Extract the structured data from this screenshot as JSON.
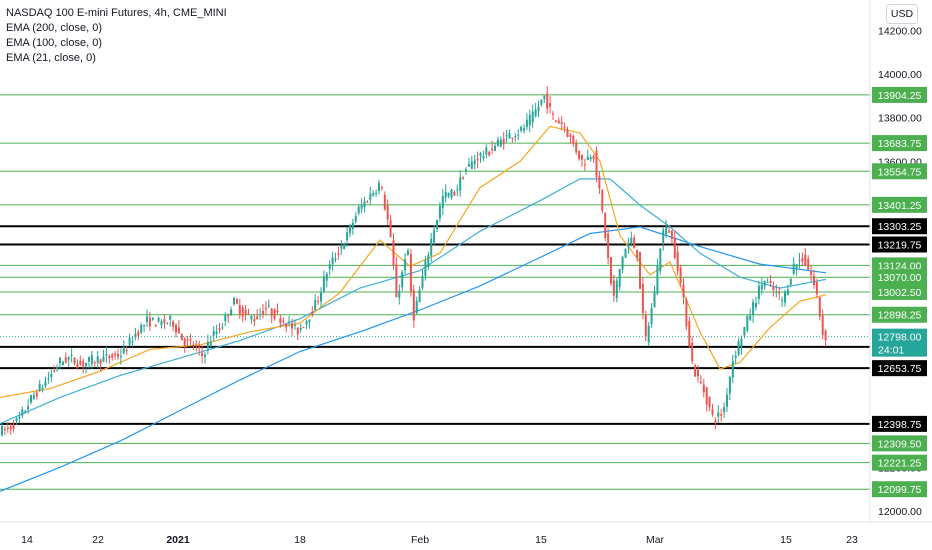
{
  "header": {
    "title": "NASDAQ 100 E-mini Futures, 4h, CME_MINI",
    "indicators": [
      "EMA (200, close, 0)",
      "EMA (100, close, 0)",
      "EMA (21, close, 0)"
    ],
    "currency_button": "USD"
  },
  "colors": {
    "up": "#26a69a",
    "down": "#ef5350",
    "green_level": "#4caf50",
    "black_level": "#000000",
    "ema21": "#f5a623",
    "ema100": "#3fb1d6",
    "ema200": "#2196f3",
    "last_price": "#26a69a"
  },
  "chart_data": {
    "type": "candlestick",
    "title": "NASDAQ 100 E-mini Futures, 4h, CME_MINI",
    "timeframe": "4h",
    "ylim": [
      11930,
      14330
    ],
    "y_ticks": [
      12000.0,
      12200.0,
      13600.0,
      13800.0,
      14000.0,
      14200.0
    ],
    "x_ticks": [
      "14",
      "22",
      "2021",
      "18",
      "Feb",
      "15",
      "Mar",
      "15",
      "23"
    ],
    "x_tick_bold": [
      "2021"
    ],
    "horizontal_levels": [
      {
        "price": 13904.25,
        "label": "13904.25",
        "color": "green"
      },
      {
        "price": 13683.75,
        "label": "13683.75",
        "color": "green"
      },
      {
        "price": 13554.75,
        "label": "13554.75",
        "color": "green"
      },
      {
        "price": 13401.25,
        "label": "13401.25",
        "color": "green"
      },
      {
        "price": 13303.25,
        "label": "13303.25",
        "color": "black"
      },
      {
        "price": 13219.75,
        "label": "13219.75",
        "color": "black"
      },
      {
        "price": 13124.0,
        "label": "13124.00",
        "color": "green"
      },
      {
        "price": 13070.0,
        "label": "13070.00",
        "color": "green"
      },
      {
        "price": 13002.5,
        "label": "13002.50",
        "color": "green"
      },
      {
        "price": 12898.25,
        "label": "12898.25",
        "color": "green"
      },
      {
        "price": 12751.0,
        "label": "12751.00",
        "color": "black"
      },
      {
        "price": 12653.75,
        "label": "12653.75",
        "color": "black"
      },
      {
        "price": 12398.75,
        "label": "12398.75",
        "color": "black"
      },
      {
        "price": 12309.5,
        "label": "12309.50",
        "color": "green"
      },
      {
        "price": 12221.25,
        "label": "12221.25",
        "color": "green"
      },
      {
        "price": 12099.75,
        "label": "12099.75",
        "color": "green"
      }
    ],
    "last_price": {
      "price": 12798.0,
      "label": "12798.00",
      "countdown": "24:01"
    },
    "price_path": [
      [
        0,
        12360
      ],
      [
        12,
        12380
      ],
      [
        22,
        12420
      ],
      [
        35,
        12520
      ],
      [
        50,
        12600
      ],
      [
        62,
        12680
      ],
      [
        72,
        12700
      ],
      [
        84,
        12670
      ],
      [
        95,
        12690
      ],
      [
        110,
        12700
      ],
      [
        125,
        12720
      ],
      [
        138,
        12810
      ],
      [
        150,
        12870
      ],
      [
        163,
        12860
      ],
      [
        175,
        12870
      ],
      [
        186,
        12780
      ],
      [
        196,
        12760
      ],
      [
        205,
        12710
      ],
      [
        215,
        12800
      ],
      [
        226,
        12860
      ],
      [
        236,
        12960
      ],
      [
        247,
        12900
      ],
      [
        258,
        12880
      ],
      [
        268,
        12930
      ],
      [
        278,
        12900
      ],
      [
        290,
        12860
      ],
      [
        300,
        12820
      ],
      [
        310,
        12880
      ],
      [
        320,
        12960
      ],
      [
        330,
        13100
      ],
      [
        340,
        13180
      ],
      [
        350,
        13260
      ],
      [
        360,
        13370
      ],
      [
        372,
        13440
      ],
      [
        383,
        13500
      ],
      [
        392,
        13300
      ],
      [
        400,
        12960
      ],
      [
        410,
        13220
      ],
      [
        416,
        12880
      ],
      [
        426,
        13080
      ],
      [
        436,
        13280
      ],
      [
        446,
        13440
      ],
      [
        458,
        13460
      ],
      [
        468,
        13560
      ],
      [
        480,
        13620
      ],
      [
        490,
        13640
      ],
      [
        500,
        13680
      ],
      [
        512,
        13720
      ],
      [
        524,
        13740
      ],
      [
        535,
        13800
      ],
      [
        547,
        13900
      ],
      [
        556,
        13800
      ],
      [
        566,
        13770
      ],
      [
        576,
        13680
      ],
      [
        586,
        13590
      ],
      [
        596,
        13650
      ],
      [
        606,
        13340
      ],
      [
        616,
        12960
      ],
      [
        626,
        13180
      ],
      [
        634,
        13240
      ],
      [
        640,
        13180
      ],
      [
        648,
        12770
      ],
      [
        656,
        12960
      ],
      [
        665,
        13280
      ],
      [
        672,
        13290
      ],
      [
        680,
        13140
      ],
      [
        688,
        12910
      ],
      [
        696,
        12650
      ],
      [
        706,
        12560
      ],
      [
        716,
        12420
      ],
      [
        726,
        12450
      ],
      [
        736,
        12700
      ],
      [
        746,
        12820
      ],
      [
        756,
        12940
      ],
      [
        766,
        13060
      ],
      [
        776,
        13010
      ],
      [
        786,
        12960
      ],
      [
        796,
        13120
      ],
      [
        806,
        13160
      ],
      [
        814,
        13080
      ],
      [
        820,
        12980
      ],
      [
        826,
        12800
      ]
    ],
    "ema21_path": [
      [
        0,
        12520
      ],
      [
        50,
        12560
      ],
      [
        100,
        12640
      ],
      [
        150,
        12740
      ],
      [
        200,
        12760
      ],
      [
        250,
        12820
      ],
      [
        300,
        12860
      ],
      [
        340,
        13000
      ],
      [
        380,
        13240
      ],
      [
        410,
        13120
      ],
      [
        440,
        13180
      ],
      [
        480,
        13480
      ],
      [
        520,
        13600
      ],
      [
        550,
        13760
      ],
      [
        580,
        13730
      ],
      [
        600,
        13600
      ],
      [
        620,
        13260
      ],
      [
        650,
        13080
      ],
      [
        670,
        13140
      ],
      [
        700,
        12820
      ],
      [
        720,
        12650
      ],
      [
        740,
        12680
      ],
      [
        770,
        12840
      ],
      [
        800,
        12960
      ],
      [
        826,
        12990
      ]
    ],
    "ema100_path": [
      [
        0,
        12400
      ],
      [
        60,
        12520
      ],
      [
        120,
        12620
      ],
      [
        180,
        12700
      ],
      [
        240,
        12780
      ],
      [
        300,
        12880
      ],
      [
        360,
        13020
      ],
      [
        420,
        13100
      ],
      [
        480,
        13280
      ],
      [
        540,
        13420
      ],
      [
        580,
        13520
      ],
      [
        610,
        13520
      ],
      [
        640,
        13400
      ],
      [
        670,
        13300
      ],
      [
        700,
        13180
      ],
      [
        740,
        13070
      ],
      [
        780,
        13020
      ],
      [
        826,
        13060
      ]
    ],
    "ema200_path": [
      [
        0,
        12090
      ],
      [
        60,
        12200
      ],
      [
        120,
        12320
      ],
      [
        180,
        12460
      ],
      [
        240,
        12600
      ],
      [
        300,
        12730
      ],
      [
        360,
        12820
      ],
      [
        420,
        12920
      ],
      [
        480,
        13030
      ],
      [
        540,
        13160
      ],
      [
        590,
        13270
      ],
      [
        640,
        13300
      ],
      [
        700,
        13210
      ],
      [
        760,
        13130
      ],
      [
        826,
        13090
      ]
    ]
  }
}
